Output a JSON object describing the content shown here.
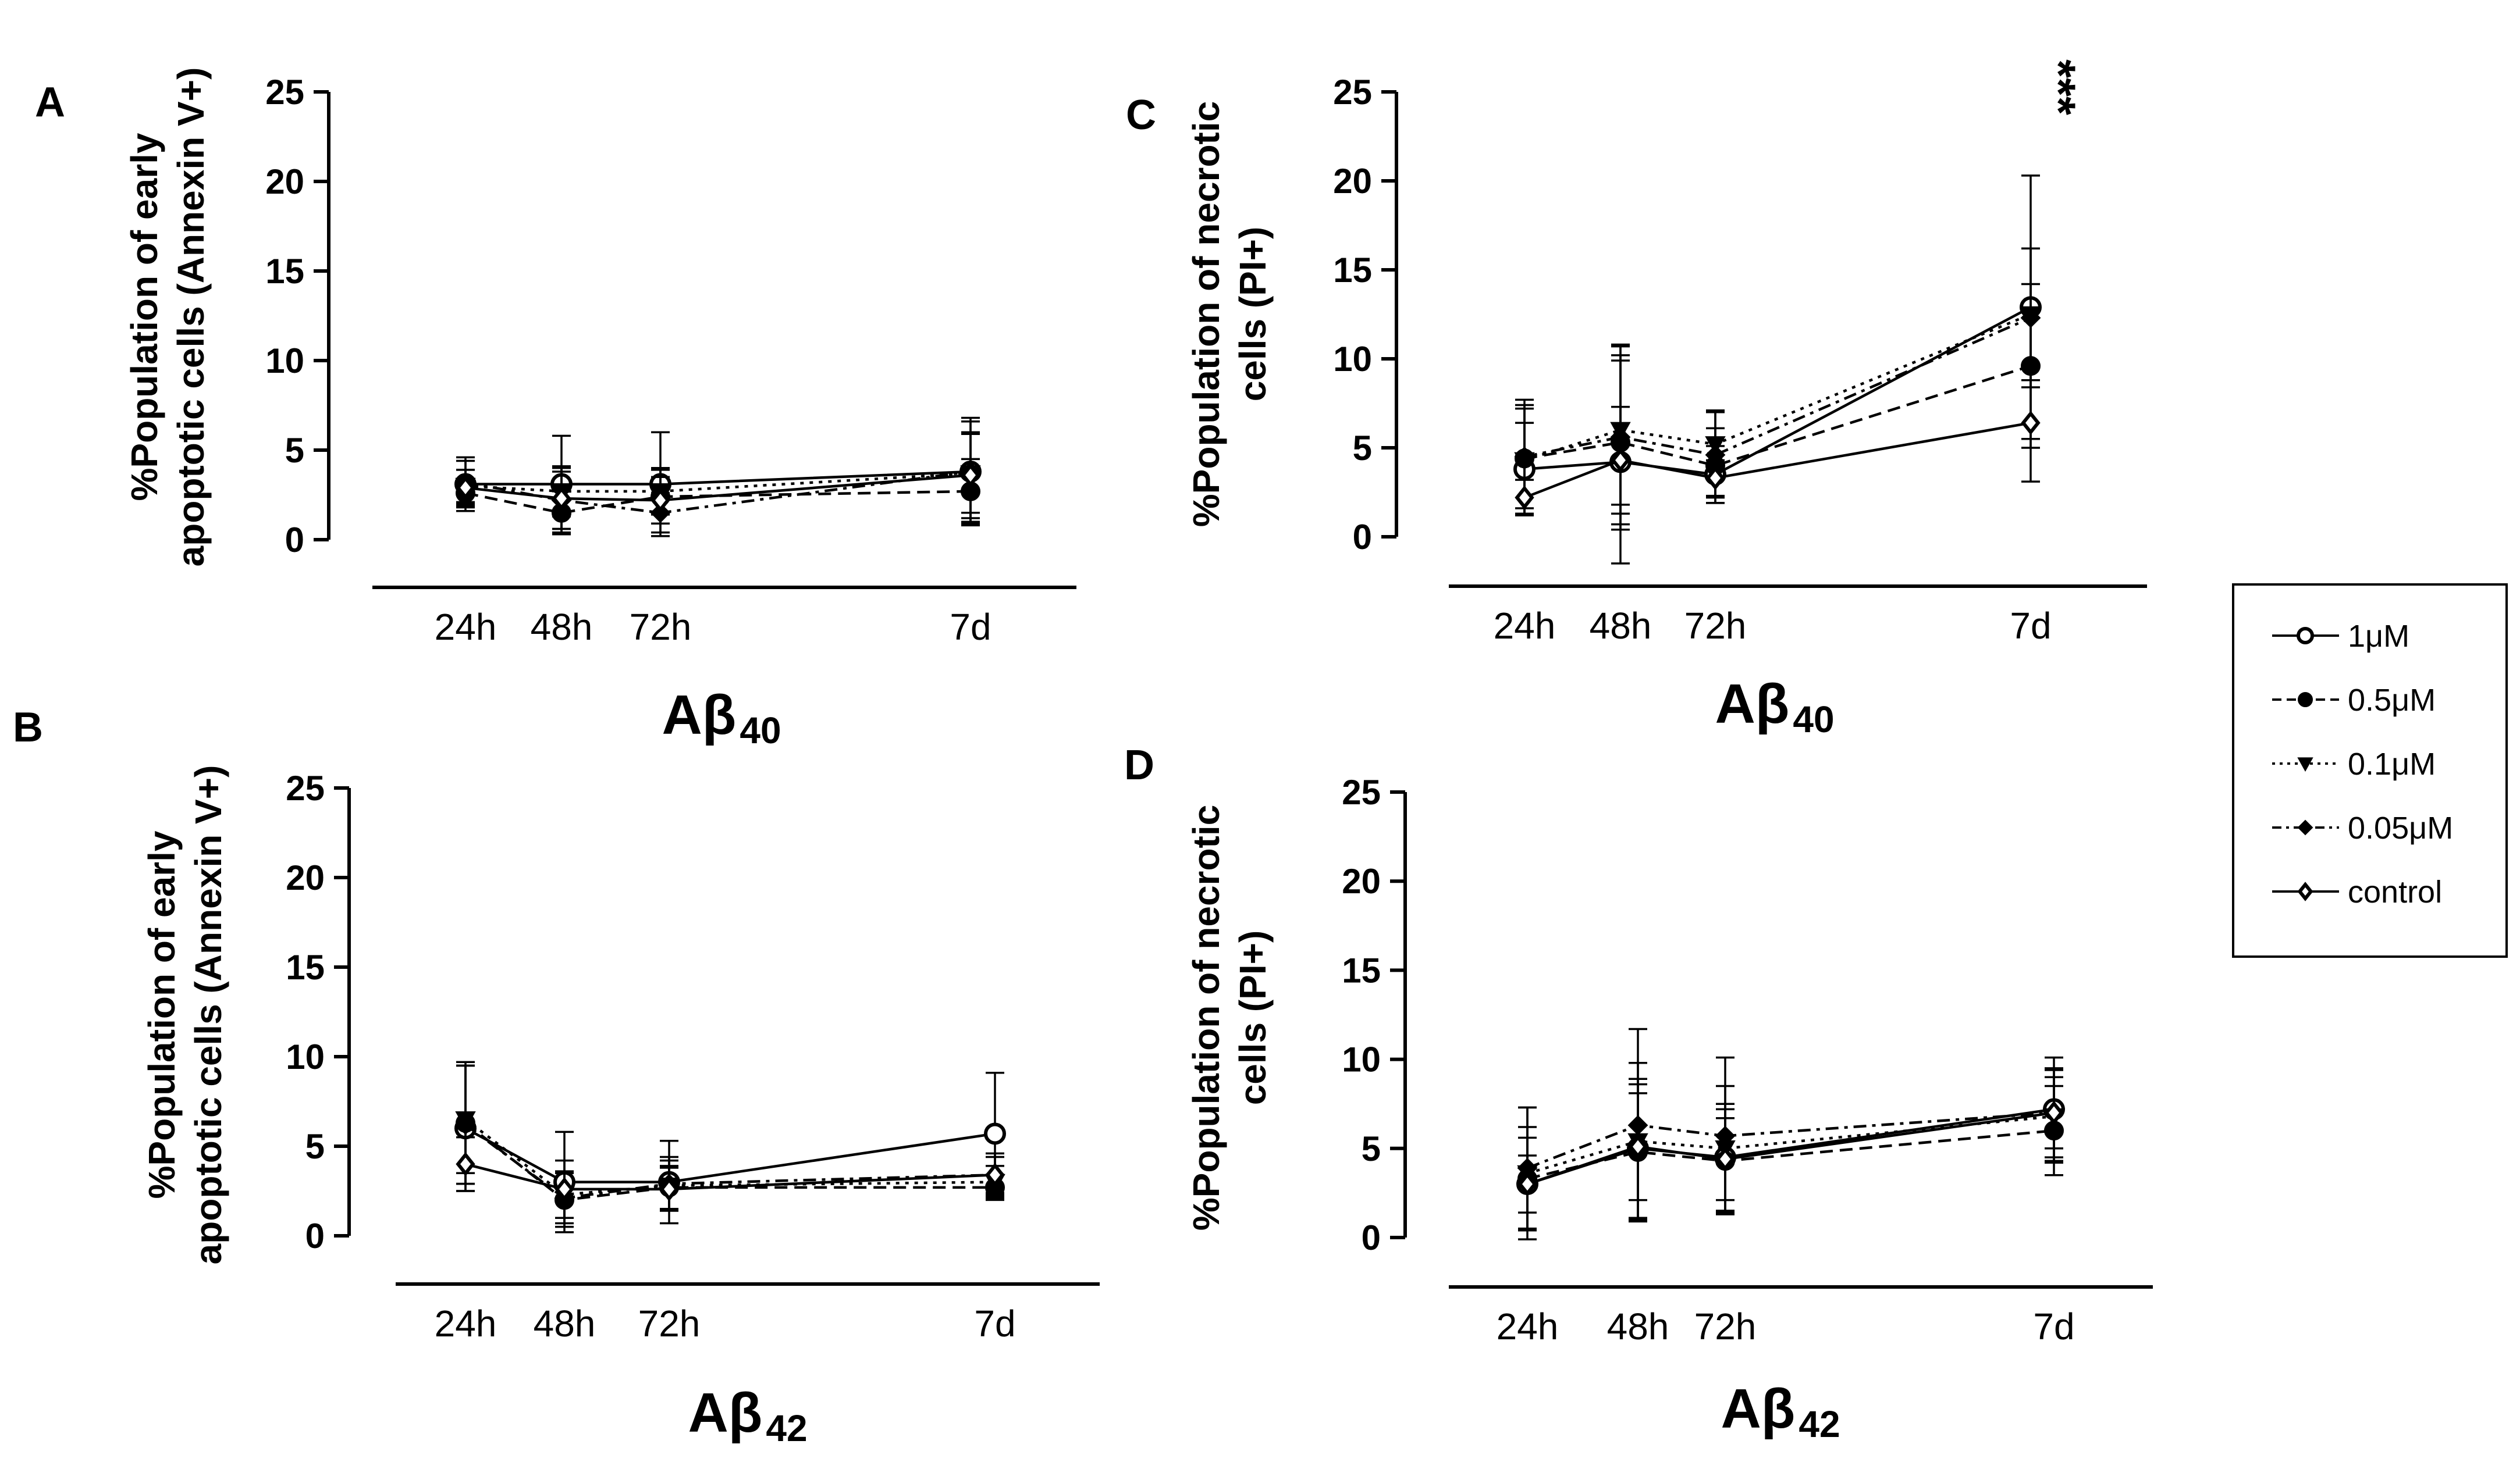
{
  "chart_data": [
    {
      "type": "line",
      "panel": "A",
      "ylabel": [
        "%Population of early",
        "apoptotic cells (Annexin V+)"
      ],
      "xlabel": "Aβ",
      "xlabel_sub": "40",
      "x": [
        "24h",
        "48h",
        "72h",
        "7d"
      ],
      "ylim": [
        0,
        25
      ],
      "yticks": [
        0,
        5,
        10,
        15,
        20,
        25
      ],
      "series": [
        {
          "name": "1μM",
          "values": [
            3.1,
            3.1,
            3.1,
            3.8
          ],
          "err": [
            1.5,
            2.7,
            2.9,
            3.0
          ]
        },
        {
          "name": "0.5μM",
          "values": [
            2.6,
            1.5,
            2.4,
            2.7
          ],
          "err": [
            0.8,
            1.2,
            1.5,
            1.8
          ]
        },
        {
          "name": "0.1μM",
          "values": [
            3.0,
            2.7,
            2.7,
            3.7
          ],
          "err": [
            0.9,
            1.4,
            1.3,
            2.2
          ]
        },
        {
          "name": "0.05μM",
          "values": [
            3.2,
            2.2,
            1.5,
            3.8
          ],
          "err": [
            1.2,
            1.6,
            1.1,
            2.8
          ]
        },
        {
          "name": "control",
          "values": [
            2.9,
            2.3,
            2.2,
            3.6
          ],
          "err": [
            1.0,
            1.7,
            1.3,
            2.4
          ]
        }
      ]
    },
    {
      "type": "line",
      "panel": "B",
      "ylabel": [
        "%Population of early",
        "apoptotic cells (Annexin V+)"
      ],
      "xlabel": "Aβ",
      "xlabel_sub": "42",
      "x": [
        "24h",
        "48h",
        "72h",
        "7d"
      ],
      "ylim": [
        0,
        25
      ],
      "yticks": [
        0,
        5,
        10,
        15,
        20,
        25
      ],
      "series": [
        {
          "name": "1μM",
          "values": [
            6.0,
            3.0,
            3.0,
            5.7
          ],
          "err": [
            3.5,
            2.8,
            2.3,
            3.4
          ]
        },
        {
          "name": "0.5μM",
          "values": [
            6.3,
            2.0,
            2.7,
            2.7
          ],
          "err": [
            3.4,
            1.5,
            1.2,
            0.7
          ]
        },
        {
          "name": "0.1μM",
          "values": [
            6.5,
            2.3,
            2.8,
            3.0
          ],
          "err": [
            3.0,
            1.3,
            1.4,
            0.9
          ]
        },
        {
          "name": "0.05μM",
          "values": [
            6.2,
            2.1,
            2.9,
            3.4
          ],
          "err": [
            3.3,
            1.4,
            1.5,
            1.2
          ]
        },
        {
          "name": "control",
          "values": [
            4.0,
            2.6,
            2.6,
            3.4
          ],
          "err": [
            1.5,
            1.6,
            1.2,
            1.0
          ]
        }
      ]
    },
    {
      "type": "line",
      "panel": "C",
      "ylabel": [
        "%Population of necrotic",
        "cells (PI+)"
      ],
      "xlabel": "Aβ",
      "xlabel_sub": "40",
      "x": [
        "24h",
        "48h",
        "72h",
        "7d"
      ],
      "ylim": [
        0,
        25
      ],
      "yticks": [
        0,
        5,
        10,
        15,
        20,
        25
      ],
      "annotation": "***",
      "series": [
        {
          "name": "1μM",
          "values": [
            3.8,
            4.2,
            3.5,
            12.9
          ],
          "err": [
            2.6,
            6.5,
            1.6,
            7.4
          ]
        },
        {
          "name": "0.5μM",
          "values": [
            4.4,
            5.3,
            4.0,
            9.6
          ],
          "err": [
            2.8,
            4.6,
            2.1,
            4.6
          ]
        },
        {
          "name": "0.1μM",
          "values": [
            4.3,
            6.0,
            5.2,
            12.5
          ],
          "err": [
            3.1,
            4.2,
            1.9,
            3.7
          ]
        },
        {
          "name": "0.05μM",
          "values": [
            4.5,
            5.6,
            4.6,
            12.3
          ],
          "err": [
            3.2,
            5.2,
            2.4,
            3.9
          ]
        },
        {
          "name": "control",
          "values": [
            2.2,
            4.3,
            3.3,
            6.4
          ],
          "err": [
            1.0,
            3.0,
            1.0,
            3.3
          ]
        }
      ]
    },
    {
      "type": "line",
      "panel": "D",
      "ylabel": [
        "%Population of necrotic",
        "cells (PI+)"
      ],
      "xlabel": "Aβ",
      "xlabel_sub": "42",
      "x": [
        "24h",
        "48h",
        "72h",
        "7d"
      ],
      "ylim": [
        0,
        25
      ],
      "yticks": [
        0,
        5,
        10,
        15,
        20,
        25
      ],
      "series": [
        {
          "name": "1μM",
          "values": [
            3.0,
            5.0,
            4.5,
            7.2
          ],
          "err": [
            2.6,
            3.9,
            3.0,
            2.9
          ]
        },
        {
          "name": "0.5μM",
          "values": [
            3.3,
            4.8,
            4.3,
            6.0
          ],
          "err": [
            2.9,
            3.8,
            2.9,
            2.5
          ]
        },
        {
          "name": "0.1μM",
          "values": [
            3.6,
            5.4,
            5.0,
            6.8
          ],
          "err": [
            3.7,
            4.4,
            3.5,
            2.6
          ]
        },
        {
          "name": "0.05μM",
          "values": [
            3.9,
            6.3,
            5.7,
            7.0
          ],
          "err": [
            3.4,
            5.4,
            4.4,
            2.5
          ]
        },
        {
          "name": "control",
          "values": [
            3.0,
            5.1,
            4.4,
            7.0
          ],
          "err": [
            1.6,
            3.0,
            2.3,
            2.0
          ]
        }
      ]
    }
  ],
  "legend": {
    "placement": "right",
    "entries": [
      {
        "label": "1μM",
        "marker": "open-circle",
        "line": "solid"
      },
      {
        "label": "0.5μM",
        "marker": "filled-circle",
        "line": "dashed"
      },
      {
        "label": "0.1μM",
        "marker": "filled-triangle-down",
        "line": "dotted"
      },
      {
        "label": "0.05μM",
        "marker": "filled-diamond",
        "line": "dash-dot"
      },
      {
        "label": "control",
        "marker": "open-diamond",
        "line": "solid"
      }
    ]
  }
}
